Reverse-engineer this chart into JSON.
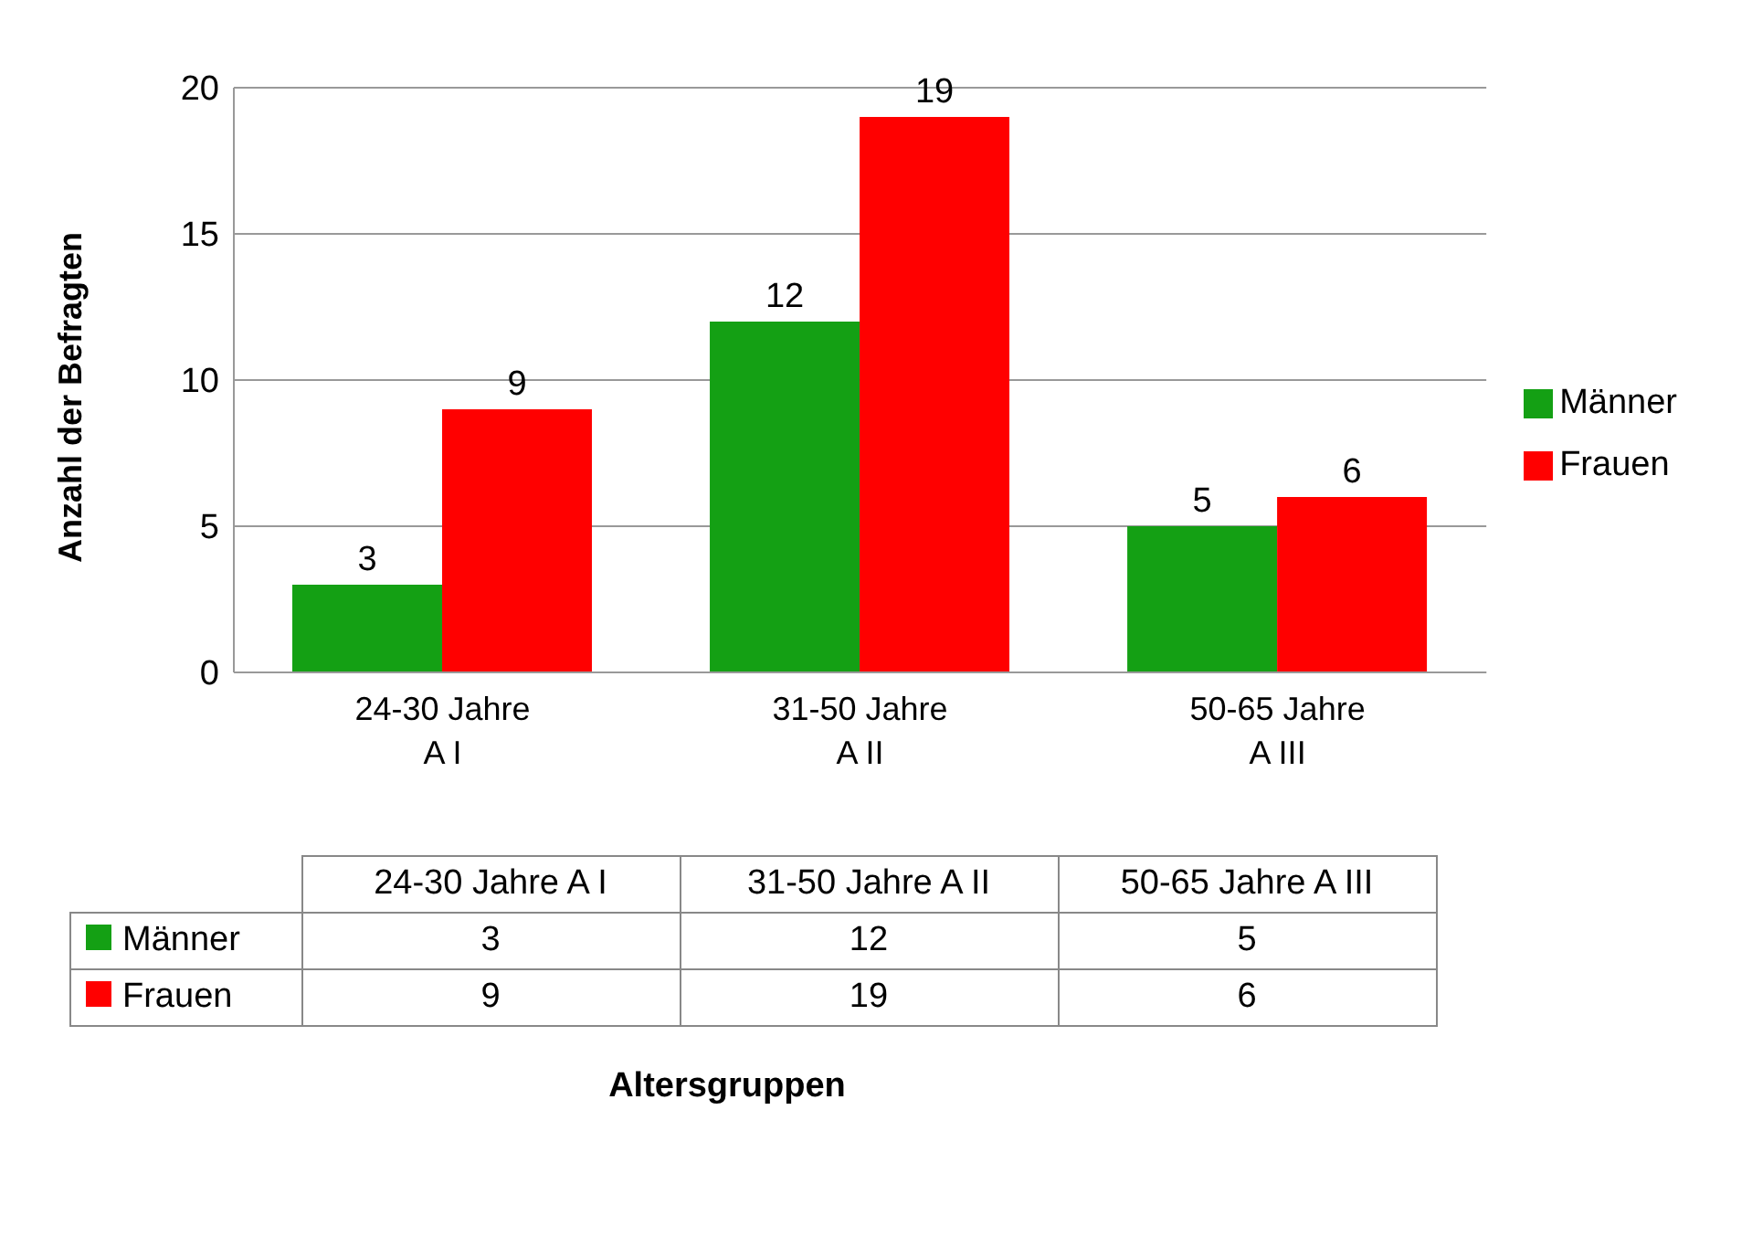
{
  "chart_data": {
    "type": "bar",
    "ylabel": "Anzahl der Befragten",
    "annotations": [
      "Altersgruppen"
    ],
    "categories": [
      "24-30 Jahre A I",
      "31-50 Jahre A II",
      "50-65 Jahre A III"
    ],
    "series": [
      {
        "name": "Männer",
        "color": "#14a014",
        "values": [
          3,
          12,
          5
        ],
        "value_labels": [
          "3",
          "12",
          "5"
        ]
      },
      {
        "name": "Frauen",
        "color": "#ff0000",
        "values": [
          9,
          19,
          6
        ],
        "value_labels": [
          "9",
          "19",
          "6"
        ]
      }
    ],
    "ylim": [
      0,
      20
    ],
    "yticks": [
      0,
      5,
      10,
      15,
      20
    ],
    "grid": "y",
    "legend": "right",
    "data_labels": true
  }
}
